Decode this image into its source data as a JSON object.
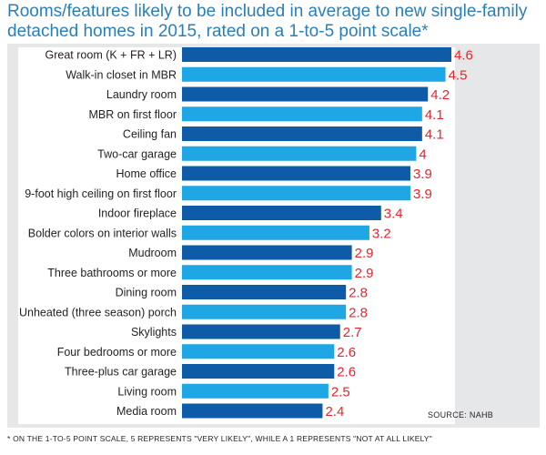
{
  "title": "Rooms/features likely to be included in average to new single-family detached homes in 2015, rated on a 1-to-5 point scale*",
  "source": "SOURCE: NAHB",
  "footnote": "* ON THE 1-TO-5 POINT SCALE, 5 REPRESENTS \"VERY LIKELY\", WHILE A 1 REPRESENTS \"NOT AT ALL LIKELY\"",
  "colors": {
    "dark_bar": "#0e5ca8",
    "light_bar": "#1ea7e4",
    "value_text": "#e3262f",
    "title": "#2a7fb8",
    "frame": "#e6e7e8"
  },
  "chart_data": {
    "type": "bar",
    "orientation": "horizontal",
    "title": "Rooms/features likely to be included in average to new single-family detached homes in 2015, rated on a 1-to-5 point scale*",
    "xlabel": "",
    "ylabel": "",
    "grid": false,
    "categories": [
      "Great room (K + FR + LR)",
      "Walk-in closet in MBR",
      "Laundry room",
      "MBR on first floor",
      "Ceiling fan",
      "Two-car garage",
      "Home office",
      "9-foot high ceiling on first floor",
      "Indoor fireplace",
      "Bolder colors on interior walls",
      "Mudroom",
      "Three bathrooms or more",
      "Dining room",
      "Unheated (three season) porch",
      "Skylights",
      "Four bedrooms or more",
      "Three-plus car garage",
      "Living room",
      "Media room"
    ],
    "values": [
      4.6,
      4.5,
      4.2,
      4.1,
      4.1,
      4,
      3.9,
      3.9,
      3.4,
      3.2,
      2.9,
      2.9,
      2.8,
      2.8,
      2.7,
      2.6,
      2.6,
      2.5,
      2.4
    ],
    "value_labels": [
      "4.6",
      "4.5",
      "4.2",
      "4.1",
      "4.1",
      "4",
      "3.9",
      "3.9",
      "3.4",
      "3.2",
      "2.9",
      "2.9",
      "2.8",
      "2.8",
      "2.7",
      "2.6",
      "2.6",
      "2.5",
      "2.4"
    ],
    "bar_shades": [
      "dark",
      "light",
      "dark",
      "light",
      "dark",
      "light",
      "dark",
      "light",
      "dark",
      "light",
      "dark",
      "light",
      "dark",
      "light",
      "dark",
      "light",
      "dark",
      "light",
      "dark"
    ]
  }
}
